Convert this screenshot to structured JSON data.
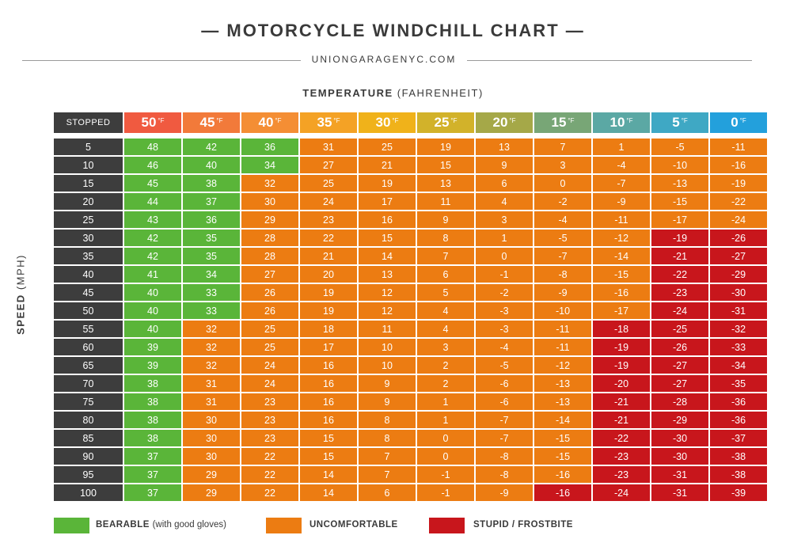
{
  "header": {
    "title": "— MOTORCYCLE WINDCHILL CHART —",
    "site": "UNIONGARAGENYC.COM"
  },
  "axes": {
    "temperature_label_strong": "TEMPERATURE",
    "temperature_label_rest": "(FAHRENHEIT)",
    "speed_label_strong": "SPEED",
    "speed_label_rest": "(MPH)"
  },
  "chart_data": {
    "type": "table",
    "corner_label": "STOPPED",
    "temperature_unit": "°F",
    "temperatures": [
      50,
      45,
      40,
      35,
      30,
      25,
      20,
      15,
      10,
      5,
      0
    ],
    "header_colors": [
      "#f05a40",
      "#f27a3a",
      "#f48e34",
      "#f4a225",
      "#f0b21a",
      "#d2b22a",
      "#a5a848",
      "#78a676",
      "#5ba8a4",
      "#3fa8c4",
      "#23a0dc"
    ],
    "speeds": [
      5,
      10,
      15,
      20,
      25,
      30,
      35,
      40,
      45,
      50,
      55,
      60,
      65,
      70,
      75,
      80,
      85,
      90,
      95,
      100
    ],
    "values": [
      [
        48,
        42,
        36,
        31,
        25,
        19,
        13,
        7,
        1,
        -5,
        -11
      ],
      [
        46,
        40,
        34,
        27,
        21,
        15,
        9,
        3,
        -4,
        -10,
        -16
      ],
      [
        45,
        38,
        32,
        25,
        19,
        13,
        6,
        0,
        -7,
        -13,
        -19
      ],
      [
        44,
        37,
        30,
        24,
        17,
        11,
        4,
        -2,
        -9,
        -15,
        -22
      ],
      [
        43,
        36,
        29,
        23,
        16,
        9,
        3,
        -4,
        -11,
        -17,
        -24
      ],
      [
        42,
        35,
        28,
        22,
        15,
        8,
        1,
        -5,
        -12,
        -19,
        -26
      ],
      [
        42,
        35,
        28,
        21,
        14,
        7,
        0,
        -7,
        -14,
        -21,
        -27
      ],
      [
        41,
        34,
        27,
        20,
        13,
        6,
        -1,
        -8,
        -15,
        -22,
        -29
      ],
      [
        40,
        33,
        26,
        19,
        12,
        5,
        -2,
        -9,
        -16,
        -23,
        -30
      ],
      [
        40,
        33,
        26,
        19,
        12,
        4,
        -3,
        -10,
        -17,
        -24,
        -31
      ],
      [
        40,
        32,
        25,
        18,
        11,
        4,
        -3,
        -11,
        -18,
        -25,
        -32
      ],
      [
        39,
        32,
        25,
        17,
        10,
        3,
        -4,
        -11,
        -19,
        -26,
        -33
      ],
      [
        39,
        32,
        24,
        16,
        10,
        2,
        -5,
        -12,
        -19,
        -27,
        -34
      ],
      [
        38,
        31,
        24,
        16,
        9,
        2,
        -6,
        -13,
        -20,
        -27,
        -35
      ],
      [
        38,
        31,
        23,
        16,
        9,
        1,
        -6,
        -13,
        -21,
        -28,
        -36
      ],
      [
        38,
        30,
        23,
        16,
        8,
        1,
        -7,
        -14,
        -21,
        -29,
        -36
      ],
      [
        38,
        30,
        23,
        15,
        8,
        0,
        -7,
        -15,
        -22,
        -30,
        -37
      ],
      [
        37,
        30,
        22,
        15,
        7,
        0,
        -8,
        -15,
        -23,
        -30,
        -38
      ],
      [
        37,
        29,
        22,
        14,
        7,
        -1,
        -8,
        -16,
        -23,
        -31,
        -38
      ],
      [
        37,
        29,
        22,
        14,
        6,
        -1,
        -9,
        -16,
        -24,
        -31,
        -39
      ]
    ],
    "categories": [
      [
        1,
        1,
        1,
        2,
        2,
        2,
        2,
        2,
        2,
        2,
        2
      ],
      [
        1,
        1,
        1,
        2,
        2,
        2,
        2,
        2,
        2,
        2,
        2
      ],
      [
        1,
        1,
        2,
        2,
        2,
        2,
        2,
        2,
        2,
        2,
        2
      ],
      [
        1,
        1,
        2,
        2,
        2,
        2,
        2,
        2,
        2,
        2,
        2
      ],
      [
        1,
        1,
        2,
        2,
        2,
        2,
        2,
        2,
        2,
        2,
        2
      ],
      [
        1,
        1,
        2,
        2,
        2,
        2,
        2,
        2,
        2,
        3,
        3
      ],
      [
        1,
        1,
        2,
        2,
        2,
        2,
        2,
        2,
        2,
        3,
        3
      ],
      [
        1,
        1,
        2,
        2,
        2,
        2,
        2,
        2,
        2,
        3,
        3
      ],
      [
        1,
        1,
        2,
        2,
        2,
        2,
        2,
        2,
        2,
        3,
        3
      ],
      [
        1,
        1,
        2,
        2,
        2,
        2,
        2,
        2,
        2,
        3,
        3
      ],
      [
        1,
        2,
        2,
        2,
        2,
        2,
        2,
        2,
        3,
        3,
        3
      ],
      [
        1,
        2,
        2,
        2,
        2,
        2,
        2,
        2,
        3,
        3,
        3
      ],
      [
        1,
        2,
        2,
        2,
        2,
        2,
        2,
        2,
        3,
        3,
        3
      ],
      [
        1,
        2,
        2,
        2,
        2,
        2,
        2,
        2,
        3,
        3,
        3
      ],
      [
        1,
        2,
        2,
        2,
        2,
        2,
        2,
        2,
        3,
        3,
        3
      ],
      [
        1,
        2,
        2,
        2,
        2,
        2,
        2,
        2,
        3,
        3,
        3
      ],
      [
        1,
        2,
        2,
        2,
        2,
        2,
        2,
        2,
        3,
        3,
        3
      ],
      [
        1,
        2,
        2,
        2,
        2,
        2,
        2,
        2,
        3,
        3,
        3
      ],
      [
        1,
        2,
        2,
        2,
        2,
        2,
        2,
        2,
        3,
        3,
        3
      ],
      [
        1,
        2,
        2,
        2,
        2,
        2,
        2,
        3,
        3,
        3,
        3
      ]
    ],
    "category_colors": {
      "1": "#5ab539",
      "2": "#ec7c12",
      "3": "#c8161c"
    },
    "row_header_color": "#3d3d3d"
  },
  "legend": [
    {
      "label": "BEARABLE",
      "note": "(with good gloves)",
      "color": "#5ab539"
    },
    {
      "label": "UNCOMFORTABLE",
      "note": "",
      "color": "#ec7c12"
    },
    {
      "label": "STUPID / FROSTBITE",
      "note": "",
      "color": "#c8161c"
    }
  ]
}
